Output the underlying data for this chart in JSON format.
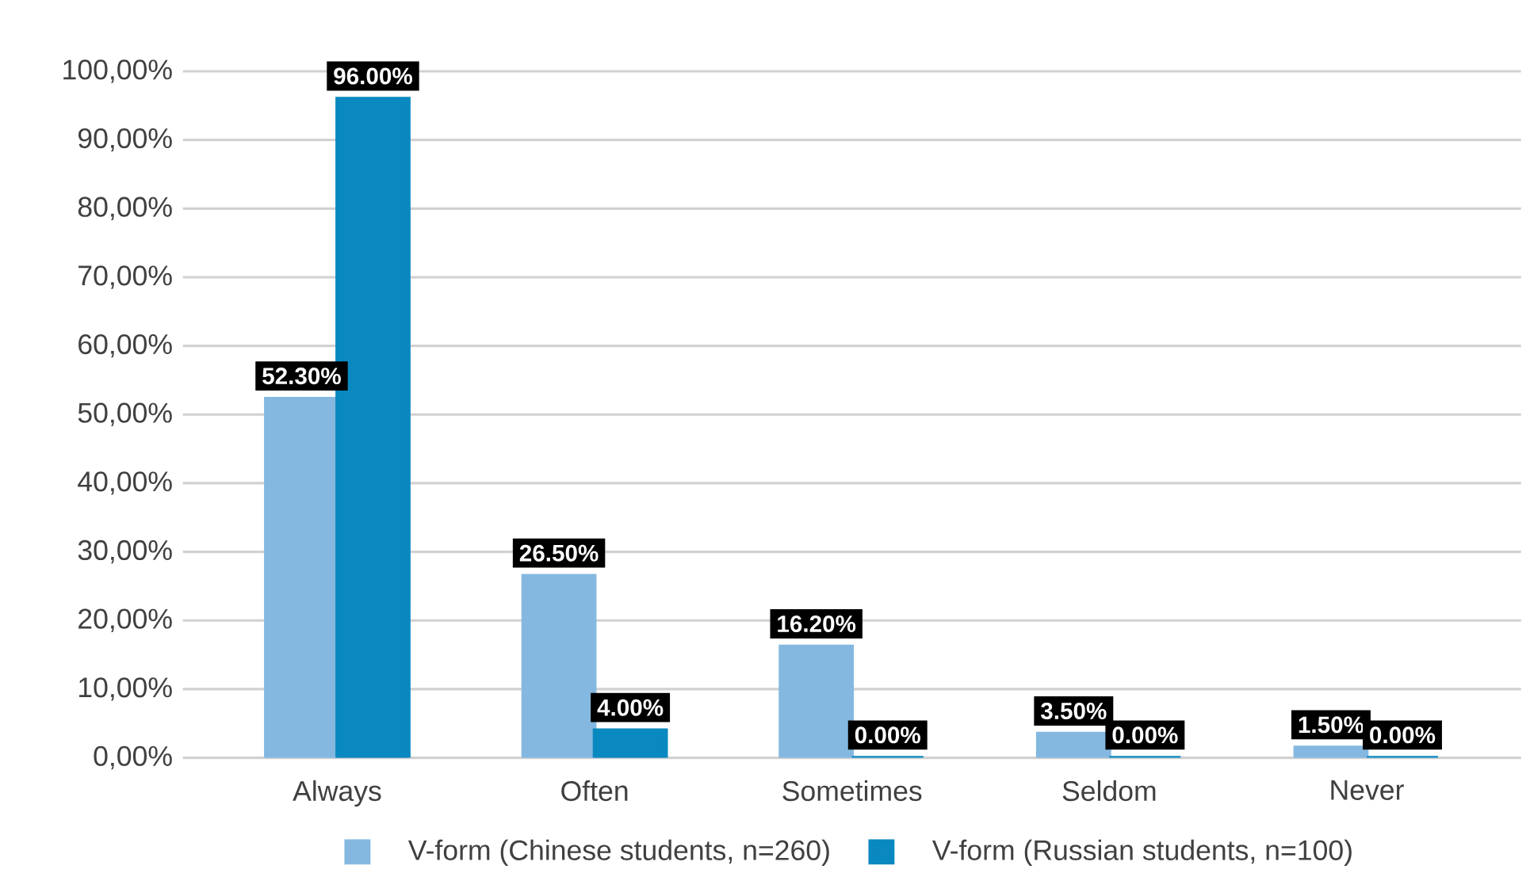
{
  "chart_data": {
    "type": "bar",
    "categories": [
      "Always",
      "Often",
      "Sometimes",
      "Seldom",
      "Never"
    ],
    "series": [
      {
        "name": "V-form (Chinese students, n=260)",
        "color": "#84b8e0",
        "values": [
          52.3,
          26.5,
          16.2,
          3.5,
          1.5
        ],
        "value_labels": [
          "52.30%",
          "26.50%",
          "16.20%",
          "3.50%",
          "1.50%"
        ]
      },
      {
        "name": "V-form (Russian students, n=100)",
        "color": "#0a88c0",
        "values": [
          96.0,
          4.0,
          0.0,
          0.0,
          0.0
        ],
        "value_labels": [
          "96.00%",
          "4.00%",
          "0.00%",
          "0.00%",
          "0.00%"
        ]
      }
    ],
    "ylim": [
      0,
      100
    ],
    "yticks": [
      {
        "value": 0,
        "label": "0,00%"
      },
      {
        "value": 10,
        "label": "10,00%"
      },
      {
        "value": 20,
        "label": "20,00%"
      },
      {
        "value": 30,
        "label": "30,00%"
      },
      {
        "value": 40,
        "label": "40,00%"
      },
      {
        "value": 50,
        "label": "50,00%"
      },
      {
        "value": 60,
        "label": "60,00%"
      },
      {
        "value": 70,
        "label": "70,00%"
      },
      {
        "value": 80,
        "label": "80,00%"
      },
      {
        "value": 90,
        "label": "90,00%"
      },
      {
        "value": 100,
        "label": "100,00%"
      }
    ],
    "grid": "y",
    "legend": "bottom"
  }
}
